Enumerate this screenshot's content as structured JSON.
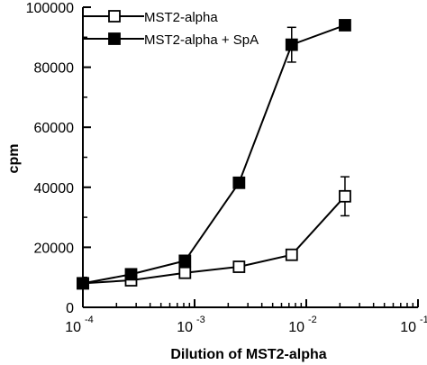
{
  "chart_data": {
    "type": "line",
    "title": "",
    "xlabel": "Dilution of MST2-alpha",
    "ylabel": "cpm",
    "xscale": "log",
    "xlim": [
      0.0001,
      0.1
    ],
    "ylim": [
      0,
      100000
    ],
    "x_ticks": [
      {
        "base": "10",
        "exp": "-4"
      },
      {
        "base": "10",
        "exp": "-3"
      },
      {
        "base": "10",
        "exp": "-2"
      },
      {
        "base": "10",
        "exp": "-1"
      }
    ],
    "y_ticks": [
      "0",
      "20000",
      "40000",
      "60000",
      "80000",
      "100000"
    ],
    "legend_position": "top-left",
    "series": [
      {
        "name": "MST2-alpha",
        "marker": "open-square",
        "x": [
          0.0001,
          0.00027,
          0.00082,
          0.0025,
          0.0074,
          0.0222
        ],
        "y": [
          8000,
          9000,
          11500,
          13500,
          17500,
          37000
        ],
        "error": [
          null,
          null,
          null,
          null,
          null,
          6500
        ]
      },
      {
        "name": "MST2-alpha + SpA",
        "marker": "filled-square",
        "x": [
          0.0001,
          0.00027,
          0.00082,
          0.0025,
          0.0074,
          0.0222
        ],
        "y": [
          8000,
          11000,
          15500,
          41500,
          87500,
          94000
        ],
        "error": [
          null,
          null,
          null,
          null,
          5800,
          null
        ]
      }
    ]
  }
}
